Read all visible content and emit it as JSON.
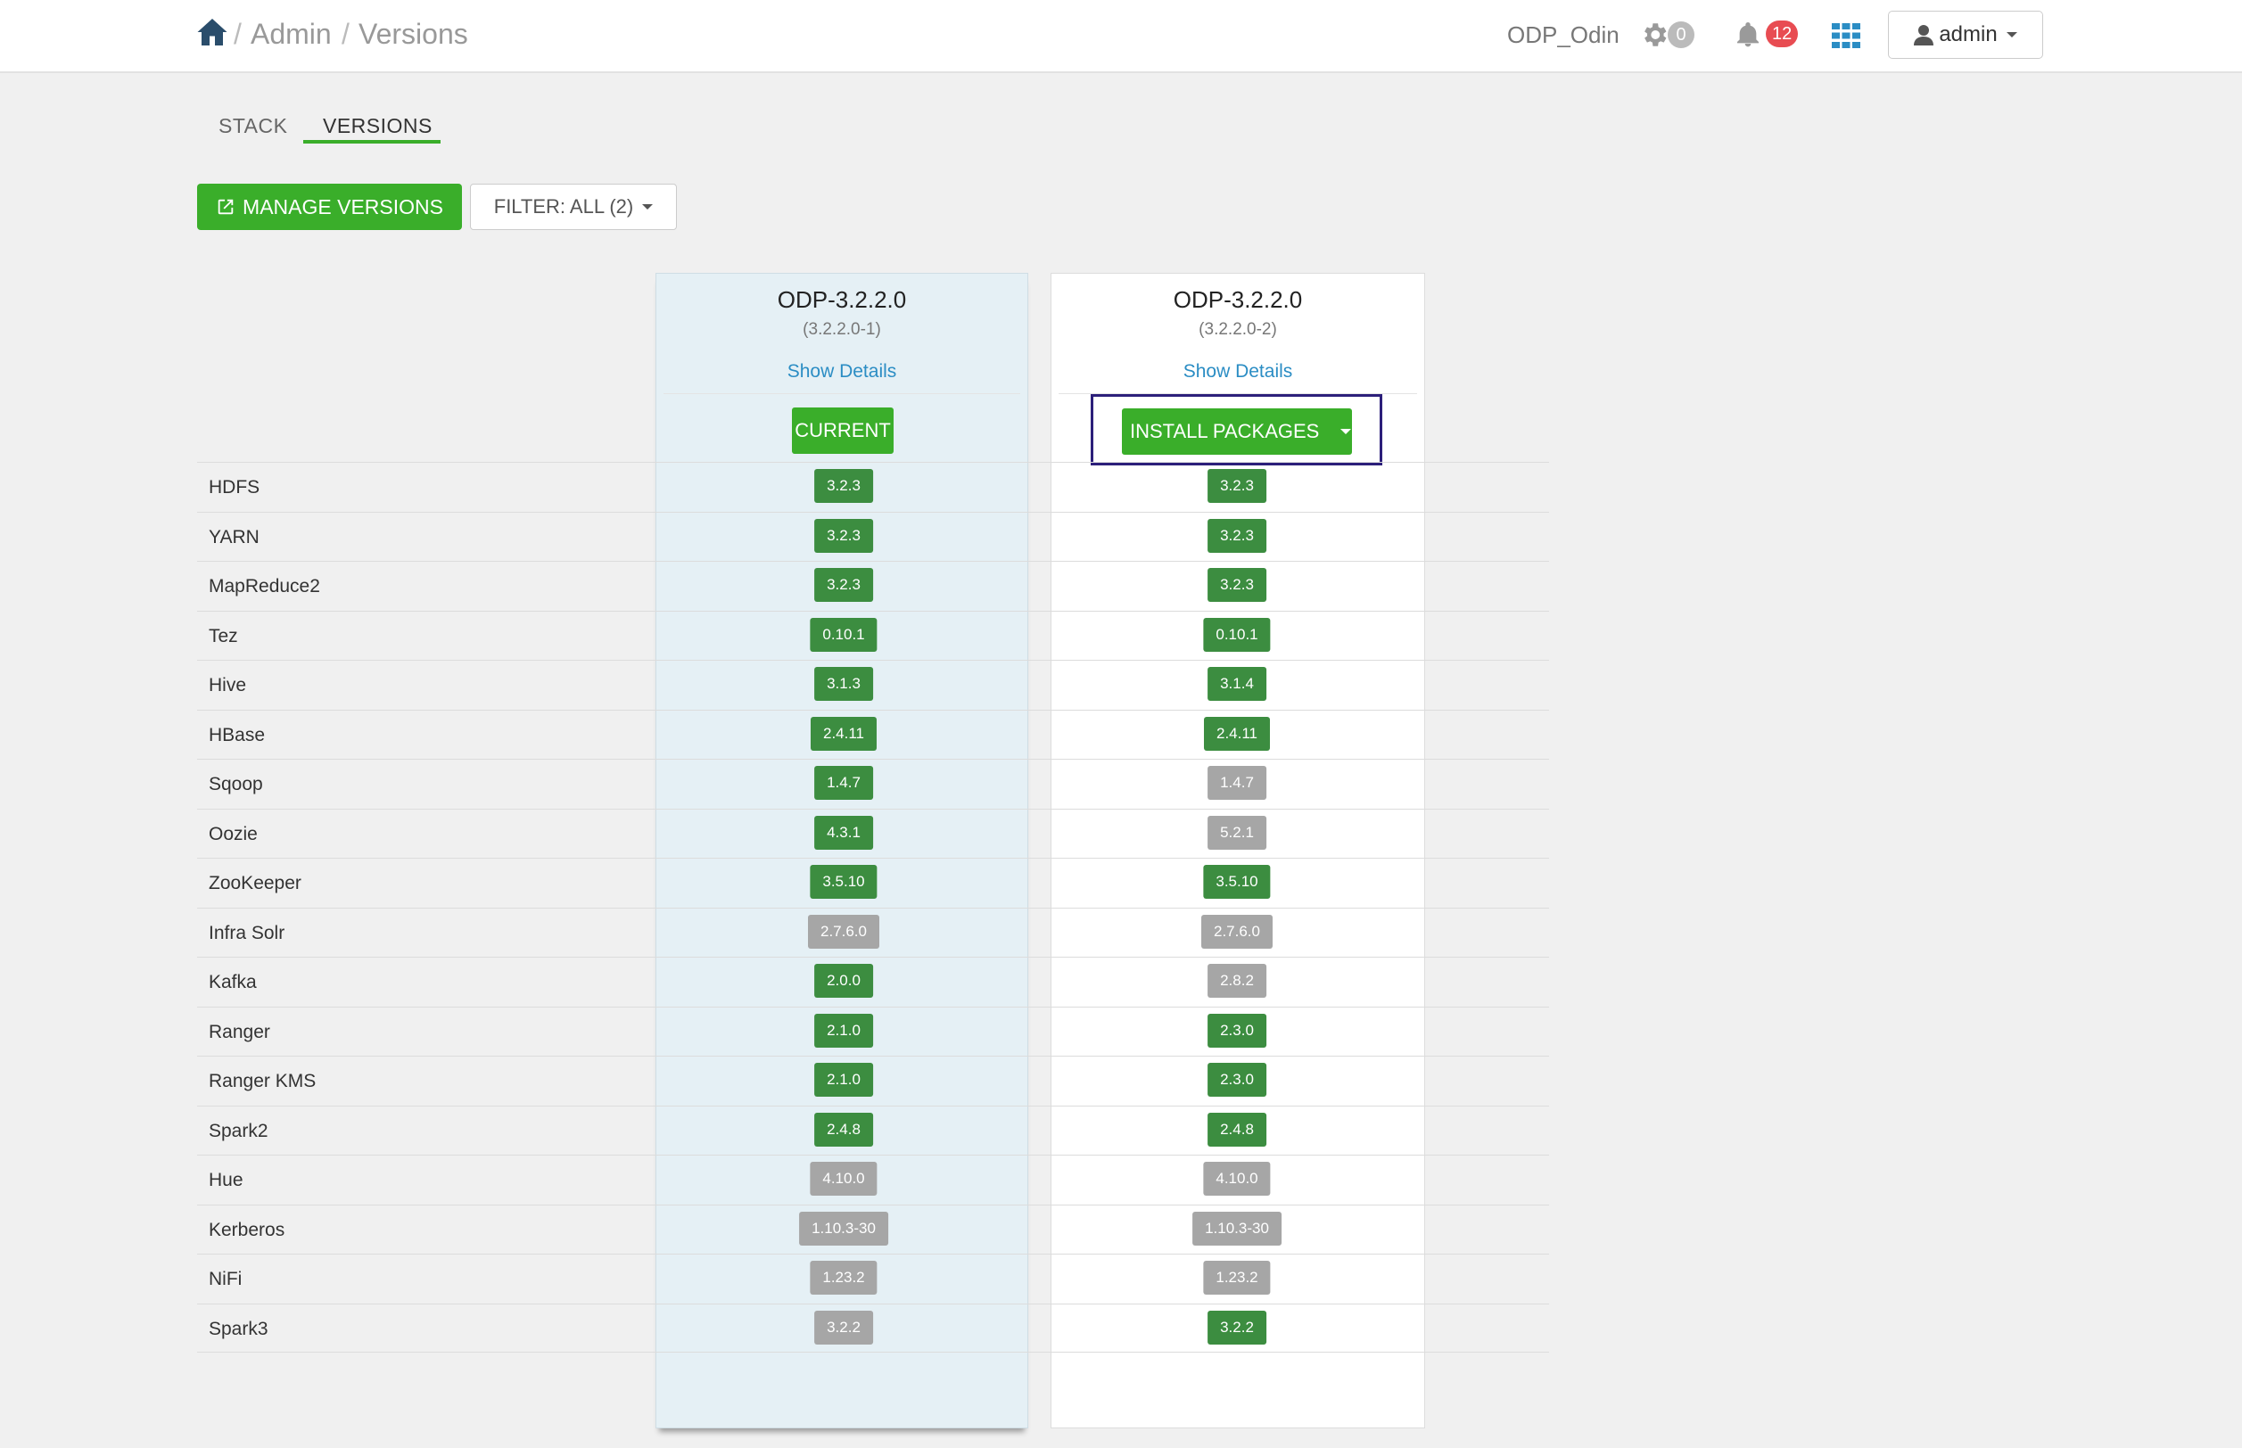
{
  "breadcrumb": {
    "sep1": "/",
    "admin": "Admin",
    "sep2": "/",
    "versions": "Versions"
  },
  "header": {
    "cluster_name": "ODP_Odin",
    "ops_count": "0",
    "alerts_count": "12",
    "user_label": "admin"
  },
  "tabs": {
    "stack": "STACK",
    "versions": "VERSIONS",
    "active": "VERSIONS"
  },
  "actions": {
    "manage_versions": "MANAGE VERSIONS",
    "filter": "FILTER: ALL (2)"
  },
  "colors": {
    "accent_green": "#3aae2a",
    "installed_green": "#3c8d40",
    "not_installed_grey": "#a6a6a6",
    "highlight_frame": "#2c1f7a"
  },
  "versions": [
    {
      "title": "ODP-3.2.2.0",
      "build": "(3.2.2.0-1)",
      "details_link": "Show Details",
      "action": "CURRENT"
    },
    {
      "title": "ODP-3.2.2.0",
      "build": "(3.2.2.0-2)",
      "details_link": "Show Details",
      "action": "INSTALL PACKAGES"
    }
  ],
  "services": [
    {
      "name": "HDFS",
      "current": {
        "v": "3.2.3",
        "state": "green"
      },
      "target": {
        "v": "3.2.3",
        "state": "green"
      }
    },
    {
      "name": "YARN",
      "current": {
        "v": "3.2.3",
        "state": "green"
      },
      "target": {
        "v": "3.2.3",
        "state": "green"
      }
    },
    {
      "name": "MapReduce2",
      "current": {
        "v": "3.2.3",
        "state": "green"
      },
      "target": {
        "v": "3.2.3",
        "state": "green"
      }
    },
    {
      "name": "Tez",
      "current": {
        "v": "0.10.1",
        "state": "green"
      },
      "target": {
        "v": "0.10.1",
        "state": "green"
      }
    },
    {
      "name": "Hive",
      "current": {
        "v": "3.1.3",
        "state": "green"
      },
      "target": {
        "v": "3.1.4",
        "state": "green"
      }
    },
    {
      "name": "HBase",
      "current": {
        "v": "2.4.11",
        "state": "green"
      },
      "target": {
        "v": "2.4.11",
        "state": "green"
      }
    },
    {
      "name": "Sqoop",
      "current": {
        "v": "1.4.7",
        "state": "green"
      },
      "target": {
        "v": "1.4.7",
        "state": "grey"
      }
    },
    {
      "name": "Oozie",
      "current": {
        "v": "4.3.1",
        "state": "green"
      },
      "target": {
        "v": "5.2.1",
        "state": "grey"
      }
    },
    {
      "name": "ZooKeeper",
      "current": {
        "v": "3.5.10",
        "state": "green"
      },
      "target": {
        "v": "3.5.10",
        "state": "green"
      }
    },
    {
      "name": "Infra Solr",
      "current": {
        "v": "2.7.6.0",
        "state": "grey"
      },
      "target": {
        "v": "2.7.6.0",
        "state": "grey"
      }
    },
    {
      "name": "Kafka",
      "current": {
        "v": "2.0.0",
        "state": "green"
      },
      "target": {
        "v": "2.8.2",
        "state": "grey"
      }
    },
    {
      "name": "Ranger",
      "current": {
        "v": "2.1.0",
        "state": "green"
      },
      "target": {
        "v": "2.3.0",
        "state": "green"
      }
    },
    {
      "name": "Ranger KMS",
      "current": {
        "v": "2.1.0",
        "state": "green"
      },
      "target": {
        "v": "2.3.0",
        "state": "green"
      }
    },
    {
      "name": "Spark2",
      "current": {
        "v": "2.4.8",
        "state": "green"
      },
      "target": {
        "v": "2.4.8",
        "state": "green"
      }
    },
    {
      "name": "Hue",
      "current": {
        "v": "4.10.0",
        "state": "grey"
      },
      "target": {
        "v": "4.10.0",
        "state": "grey"
      }
    },
    {
      "name": "Kerberos",
      "current": {
        "v": "1.10.3-30",
        "state": "grey"
      },
      "target": {
        "v": "1.10.3-30",
        "state": "grey"
      }
    },
    {
      "name": "NiFi",
      "current": {
        "v": "1.23.2",
        "state": "grey"
      },
      "target": {
        "v": "1.23.2",
        "state": "grey"
      }
    },
    {
      "name": "Spark3",
      "current": {
        "v": "3.2.2",
        "state": "grey"
      },
      "target": {
        "v": "3.2.2",
        "state": "green"
      }
    }
  ]
}
